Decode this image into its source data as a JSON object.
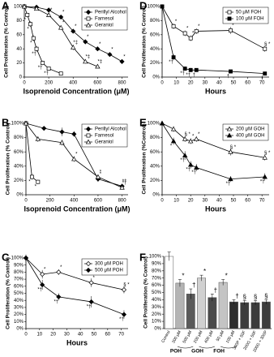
{
  "chart_data": [
    {
      "type": "line",
      "label": "A",
      "xlabel": "Isoprenoid Concentration (μM)",
      "ylabel": "Cell Proliferation (% Control)",
      "xlim": [
        0,
        850
      ],
      "xticks": [
        0,
        200,
        400,
        600,
        800
      ],
      "ylim": [
        0,
        100
      ],
      "yticks": [
        0,
        20,
        40,
        60,
        80,
        100
      ],
      "legend": "upper-right",
      "series": [
        {
          "name": "Perillyl Alcohol",
          "color": "#000000",
          "marker": "diamond",
          "filled": true,
          "x": [
            0,
            100,
            200,
            300,
            400,
            500,
            600,
            700,
            800
          ],
          "values": [
            100,
            99,
            95,
            85,
            65,
            50,
            40,
            32,
            22
          ],
          "errors": [
            0,
            1,
            2,
            3,
            3,
            3,
            3,
            3,
            3
          ],
          "point_labels": [
            null,
            null,
            null,
            "*",
            "*",
            "*",
            "*",
            "*",
            "*"
          ]
        },
        {
          "name": "Farnesol",
          "color": "#000000",
          "marker": "square",
          "filled": false,
          "x": [
            0,
            25,
            50,
            75,
            100,
            150,
            200,
            300
          ],
          "values": [
            100,
            88,
            75,
            55,
            40,
            20,
            12,
            5
          ],
          "errors": [
            0,
            3,
            4,
            4,
            4,
            3,
            2,
            1
          ],
          "point_labels": [
            null,
            "*",
            "*",
            "*",
            "*†",
            "*†",
            "*†",
            null
          ]
        },
        {
          "name": "Geraniol",
          "color": "#000000",
          "marker": "triangle",
          "filled": false,
          "x": [
            0,
            100,
            200,
            300,
            400,
            500,
            600
          ],
          "values": [
            100,
            97,
            88,
            70,
            42,
            22,
            15
          ],
          "errors": [
            0,
            2,
            3,
            3,
            4,
            3,
            2
          ],
          "point_labels": [
            null,
            null,
            "*",
            "*",
            "*‡",
            "*‡",
            "*‡"
          ]
        }
      ]
    },
    {
      "type": "line",
      "label": "B",
      "xlabel": "Isoprenoid Concentration (μM)",
      "ylabel": "Cell Proliferation (% Control)",
      "xlim": [
        0,
        850
      ],
      "xticks": [
        0,
        200,
        400,
        600,
        800
      ],
      "ylim": [
        0,
        100
      ],
      "yticks": [
        {
          "value": 0,
          "label": "0%"
        },
        {
          "value": 20,
          "label": "20%"
        },
        {
          "value": 40,
          "label": "40%"
        },
        {
          "value": 60,
          "label": "60%"
        },
        {
          "value": 80,
          "label": "80%"
        },
        {
          "value": 100,
          "label": "100%"
        }
      ],
      "legend": "upper-right",
      "series": [
        {
          "name": "Perillyl Alcohol",
          "color": "#000000",
          "marker": "diamond",
          "filled": true,
          "x": [
            0,
            150,
            300,
            400,
            600,
            800
          ],
          "values": [
            100,
            93,
            88,
            85,
            22,
            12
          ],
          "errors": [
            0,
            3,
            6,
            4,
            4,
            3
          ],
          "point_labels": [
            null,
            null,
            null,
            null,
            "*",
            "*†"
          ]
        },
        {
          "name": "Farnesol",
          "color": "#000000",
          "marker": "square",
          "filled": false,
          "x": [
            0,
            50,
            100
          ],
          "values": [
            100,
            25,
            18
          ],
          "errors": [
            0,
            4,
            3
          ],
          "point_labels": [
            null,
            "*",
            "*"
          ]
        },
        {
          "name": "Geraniol",
          "color": "#000000",
          "marker": "triangle",
          "filled": false,
          "x": [
            0,
            100,
            300,
            400,
            600,
            800
          ],
          "values": [
            100,
            78,
            73,
            50,
            25,
            10
          ],
          "errors": [
            0,
            4,
            4,
            4,
            3,
            2
          ],
          "point_labels": [
            null,
            null,
            null,
            "*",
            "*",
            "*†"
          ]
        }
      ]
    },
    {
      "type": "line",
      "label": "C",
      "xlabel": "Hours",
      "ylabel": "Cell Proliferation (% Control)",
      "xlim": [
        0,
        75
      ],
      "xticks": [
        0,
        10,
        20,
        30,
        40,
        50,
        60,
        70
      ],
      "ylim": [
        0,
        100
      ],
      "yticks": [
        {
          "value": 0,
          "label": "0%"
        },
        {
          "value": 10,
          "label": "10%"
        },
        {
          "value": 20,
          "label": "20%"
        },
        {
          "value": 30,
          "label": "30%"
        },
        {
          "value": 40,
          "label": "40%"
        },
        {
          "value": 50,
          "label": "50%"
        },
        {
          "value": 60,
          "label": "60%"
        },
        {
          "value": 70,
          "label": "70%"
        },
        {
          "value": 80,
          "label": "80%"
        },
        {
          "value": 90,
          "label": "90%"
        },
        {
          "value": 100,
          "label": "100%"
        }
      ],
      "legend": "upper-right",
      "series": [
        {
          "name": "300 μM POH",
          "color": "#000000",
          "marker": "diamond",
          "filled": false,
          "x": [
            0,
            12,
            24,
            48,
            72
          ],
          "values": [
            100,
            77,
            80,
            65,
            55
          ],
          "errors": [
            5,
            6,
            4,
            6,
            5
          ],
          "point_labels": [
            null,
            "*",
            "*",
            "*",
            "§ *"
          ]
        },
        {
          "name": "500 μM POH",
          "color": "#000000",
          "marker": "diamond",
          "filled": true,
          "x": [
            0,
            12,
            24,
            48,
            72
          ],
          "values": [
            100,
            62,
            45,
            38,
            20
          ],
          "errors": [
            3,
            7,
            5,
            8,
            6
          ],
          "point_labels": [
            null,
            "*†",
            "*†",
            "*†",
            "*†"
          ]
        }
      ]
    },
    {
      "type": "line",
      "label": "D",
      "xlabel": "Hours",
      "ylabel": "Cell Proliferation (% Control)",
      "xlim": [
        0,
        75
      ],
      "xticks": [
        0,
        10,
        20,
        30,
        40,
        50,
        60,
        70
      ],
      "ylim": [
        0,
        100
      ],
      "yticks": [
        {
          "value": 0,
          "label": "0%"
        },
        {
          "value": 20,
          "label": "20%"
        },
        {
          "value": 40,
          "label": "40%"
        },
        {
          "value": 60,
          "label": "60%"
        },
        {
          "value": 80,
          "label": "80%"
        },
        {
          "value": 100,
          "label": "100%"
        }
      ],
      "legend": "upper-right",
      "series": [
        {
          "name": "50 μM FOH",
          "color": "#000000",
          "marker": "square",
          "filled": false,
          "x": [
            0,
            8,
            16,
            20,
            24,
            48,
            72
          ],
          "values": [
            100,
            72,
            62,
            55,
            65,
            66,
            40
          ],
          "errors": [
            3,
            4,
            4,
            4,
            4,
            5,
            4
          ],
          "point_labels": [
            null,
            "*",
            "*",
            "*",
            "*",
            "*",
            "§ *"
          ]
        },
        {
          "name": "100 μM FOH",
          "color": "#000000",
          "marker": "square",
          "filled": true,
          "x": [
            0,
            8,
            16,
            20,
            24,
            48,
            72
          ],
          "values": [
            100,
            28,
            12,
            10,
            10,
            8,
            5
          ],
          "errors": [
            3,
            4,
            3,
            3,
            2,
            2,
            1
          ],
          "point_labels": [
            null,
            "*†",
            "*†",
            "*†",
            "†",
            "†",
            "†"
          ]
        }
      ]
    },
    {
      "type": "line",
      "label": "E",
      "xlabel": "Hours",
      "ylabel": "Cell Proliferation (%Control)",
      "xlim": [
        0,
        75
      ],
      "xticks": [
        0,
        10,
        20,
        30,
        40,
        50,
        60,
        70
      ],
      "ylim": [
        0,
        100
      ],
      "yticks": [
        {
          "value": 0,
          "label": "0%"
        },
        {
          "value": 20,
          "label": "20%"
        },
        {
          "value": 40,
          "label": "40%"
        },
        {
          "value": 60,
          "label": "60%"
        },
        {
          "value": 80,
          "label": "80%"
        },
        {
          "value": 100,
          "label": "100%"
        }
      ],
      "legend": "upper-right",
      "series": [
        {
          "name": "200 μM GOH",
          "color": "#000000",
          "marker": "triangle",
          "filled": false,
          "x": [
            0,
            8,
            16,
            20,
            24,
            48,
            72
          ],
          "values": [
            100,
            92,
            78,
            75,
            78,
            60,
            52
          ],
          "errors": [
            3,
            4,
            4,
            4,
            4,
            5,
            4
          ],
          "point_labels": [
            null,
            null,
            "§ *",
            "*",
            "*",
            "§ *",
            "§ *"
          ]
        },
        {
          "name": "400 μM GOH",
          "color": "#000000",
          "marker": "triangle",
          "filled": true,
          "x": [
            0,
            8,
            16,
            20,
            24,
            48,
            72
          ],
          "values": [
            100,
            75,
            55,
            42,
            38,
            22,
            25
          ],
          "errors": [
            3,
            5,
            6,
            5,
            5,
            4,
            5
          ],
          "point_labels": [
            null,
            "*",
            "*†",
            "*†",
            "*†",
            "*†",
            "*†"
          ]
        }
      ]
    },
    {
      "type": "bar",
      "label": "F",
      "ylabel": "Cell Proliferation (% Control)",
      "ylim": [
        0,
        100
      ],
      "yticks": [
        {
          "value": 0,
          "label": "0%"
        },
        {
          "value": 10,
          "label": "10%"
        },
        {
          "value": 20,
          "label": "20%"
        },
        {
          "value": 30,
          "label": "30%"
        },
        {
          "value": 40,
          "label": "40%"
        },
        {
          "value": 50,
          "label": "50%"
        },
        {
          "value": 60,
          "label": "60%"
        },
        {
          "value": 70,
          "label": "70%"
        },
        {
          "value": 80,
          "label": "80%"
        },
        {
          "value": 90,
          "label": "90%"
        },
        {
          "value": 100,
          "label": "100%"
        }
      ],
      "categories": [
        "Control",
        "300 μM",
        "500 μM",
        "200 μM",
        "400 μM",
        "50 μM",
        "100 μM",
        "300P + 50F",
        "200G + 50F",
        "200G + 300P"
      ],
      "category_groups": [
        null,
        "POH",
        null,
        "GOH",
        null,
        "FOH",
        null,
        null,
        null,
        null
      ],
      "values": [
        100,
        63,
        48,
        70,
        43,
        64,
        37,
        36,
        36,
        37
      ],
      "errors": [
        6,
        5,
        7,
        4,
        5,
        4,
        3,
        3,
        3,
        3
      ],
      "symbols": [
        null,
        "*",
        "†",
        "*",
        "†",
        "*",
        "†",
        "§",
        "§",
        "§"
      ],
      "colors": [
        "#ffffff",
        "#b4b4b4",
        "#5a5a5a",
        "#d0d0d0",
        "#4a4a4a",
        "#c4c4c4",
        "#2e2e2e",
        "#3c3c3c",
        "#3c3c3c",
        "#3c3c3c"
      ]
    }
  ]
}
